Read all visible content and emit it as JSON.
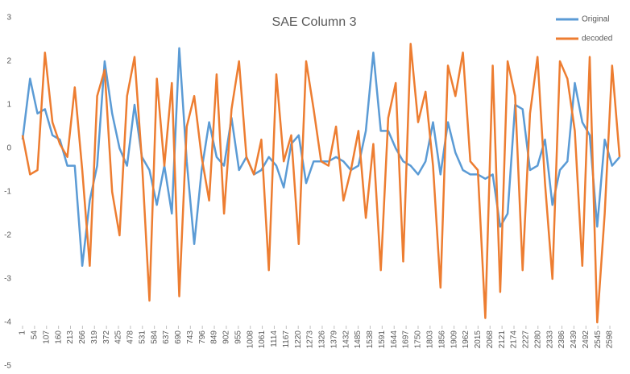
{
  "chart_data": {
    "type": "line",
    "title": "SAE Column 3",
    "x": [
      1,
      34,
      67,
      100,
      133,
      166,
      199,
      232,
      265,
      298,
      331,
      364,
      397,
      430,
      463,
      496,
      529,
      562,
      595,
      628,
      661,
      694,
      727,
      760,
      793,
      826,
      859,
      892,
      925,
      958,
      991,
      1024,
      1057,
      1090,
      1123,
      1156,
      1189,
      1222,
      1255,
      1288,
      1321,
      1354,
      1387,
      1420,
      1453,
      1486,
      1519,
      1552,
      1585,
      1618,
      1651,
      1684,
      1717,
      1750,
      1783,
      1816,
      1849,
      1882,
      1915,
      1948,
      1981,
      2014,
      2047,
      2080,
      2113,
      2146,
      2179,
      2212,
      2245,
      2278,
      2311,
      2344,
      2377,
      2410,
      2443,
      2476,
      2509,
      2542,
      2575,
      2608,
      2641
    ],
    "series": [
      {
        "name": "Original",
        "color": "#5b9bd5",
        "values": [
          0.2,
          1.6,
          0.8,
          0.9,
          0.3,
          0.2,
          -0.4,
          -0.4,
          -2.7,
          -1.2,
          -0.4,
          2.0,
          0.8,
          0.0,
          -0.4,
          1.0,
          -0.2,
          -0.5,
          -1.3,
          -0.4,
          -1.5,
          2.3,
          -0.3,
          -2.2,
          -0.5,
          0.6,
          -0.2,
          -0.4,
          0.7,
          -0.5,
          -0.2,
          -0.6,
          -0.5,
          -0.2,
          -0.4,
          -0.9,
          0.1,
          0.3,
          -0.8,
          -0.3,
          -0.3,
          -0.3,
          -0.2,
          -0.3,
          -0.5,
          -0.4,
          0.4,
          2.2,
          0.4,
          0.4,
          0.0,
          -0.3,
          -0.4,
          -0.6,
          -0.3,
          0.6,
          -0.6,
          0.6,
          -0.1,
          -0.5,
          -0.6,
          -0.6,
          -0.7,
          -0.6,
          -1.8,
          -1.5,
          1.0,
          0.9,
          -0.5,
          -0.4,
          0.2,
          -1.3,
          -0.5,
          -0.3,
          1.5,
          0.6,
          0.3,
          -1.8,
          0.2,
          -0.4,
          -0.2
        ]
      },
      {
        "name": "decoded",
        "color": "#ed7d31",
        "values": [
          0.3,
          -0.6,
          -0.5,
          2.2,
          0.6,
          0.1,
          -0.2,
          1.4,
          -0.5,
          -2.7,
          1.2,
          1.8,
          -1.0,
          -2.0,
          1.2,
          2.1,
          -0.3,
          -3.5,
          1.6,
          -0.4,
          1.5,
          -3.4,
          0.5,
          1.2,
          -0.2,
          -1.2,
          1.7,
          -1.5,
          0.9,
          2.0,
          -0.2,
          -0.6,
          0.2,
          -2.8,
          1.7,
          -0.3,
          0.3,
          -2.2,
          2.0,
          0.9,
          -0.3,
          -0.4,
          0.5,
          -1.2,
          -0.5,
          0.4,
          -1.6,
          0.1,
          -2.8,
          0.7,
          1.5,
          -2.6,
          2.4,
          0.6,
          1.3,
          -0.4,
          -3.2,
          1.9,
          1.2,
          2.2,
          -0.3,
          -0.5,
          -3.9,
          1.9,
          -3.3,
          2.0,
          1.2,
          -2.8,
          0.8,
          2.1,
          -0.8,
          -3.0,
          2.0,
          1.6,
          0.4,
          -2.7,
          2.1,
          -4.0,
          -1.5,
          1.9,
          -0.2
        ]
      }
    ],
    "xlim": [
      1,
      2662
    ],
    "xticks": [
      1,
      54,
      107,
      160,
      213,
      266,
      319,
      372,
      425,
      478,
      531,
      584,
      637,
      690,
      743,
      796,
      849,
      902,
      955,
      1008,
      1061,
      1114,
      1167,
      1220,
      1273,
      1326,
      1379,
      1432,
      1485,
      1538,
      1591,
      1644,
      1697,
      1750,
      1803,
      1856,
      1909,
      1962,
      2015,
      2068,
      2121,
      2174,
      2227,
      2280,
      2333,
      2386,
      2439,
      2492,
      2545,
      2598
    ],
    "ylim": [
      -5,
      3
    ],
    "yticks": [
      -5,
      -4,
      -3,
      -2,
      -1,
      0,
      1,
      2,
      3
    ],
    "grid": false,
    "legend": "top-right"
  }
}
